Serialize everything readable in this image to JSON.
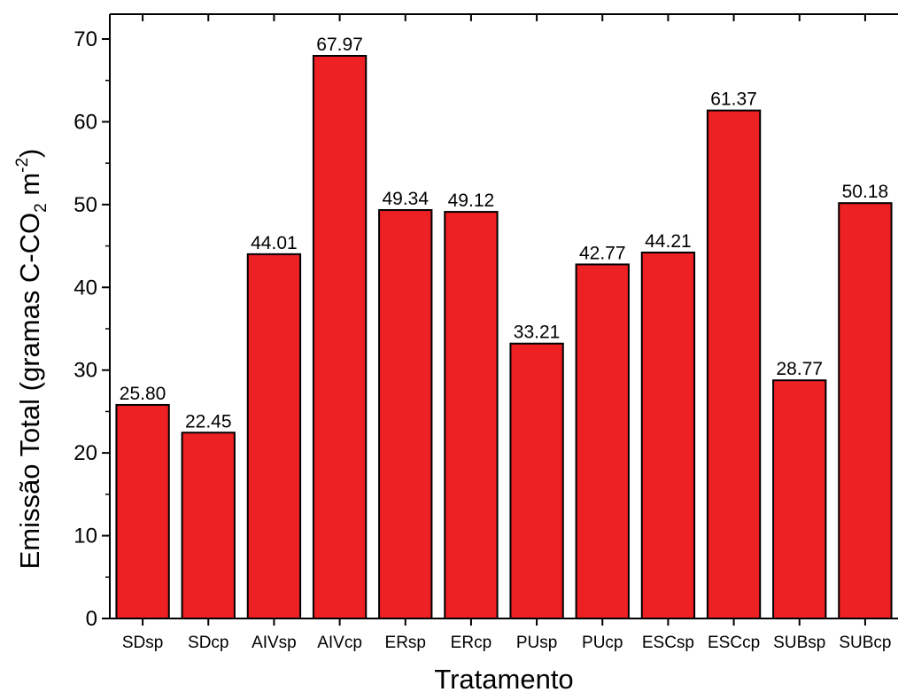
{
  "chart_data": {
    "type": "bar",
    "title": "",
    "xlabel": "Tratamento",
    "ylabel": {
      "main": "Emissão Total (gramas C-CO",
      "sub": "2",
      "unit": " m",
      "sup": "-2",
      "close": ")"
    },
    "categories": [
      "SDsp",
      "SDcp",
      "AIVsp",
      "AIVcp",
      "ERsp",
      "ERcp",
      "PUsp",
      "PUcp",
      "ESCsp",
      "ESCcp",
      "SUBsp",
      "SUBcp"
    ],
    "values": [
      25.8,
      22.45,
      44.01,
      67.97,
      49.34,
      49.12,
      33.21,
      42.77,
      44.21,
      61.37,
      28.77,
      50.18
    ],
    "value_labels": [
      "25.80",
      "22.45",
      "44.01",
      "67.97",
      "49.34",
      "49.12",
      "33.21",
      "42.77",
      "44.21",
      "61.37",
      "28.77",
      "50.18"
    ],
    "yticks": [
      0,
      10,
      20,
      30,
      40,
      50,
      60,
      70
    ],
    "ylim": [
      0,
      73
    ],
    "grid": false,
    "legend": "none",
    "bar_color": "#ed2024",
    "edge_color": "#000000"
  }
}
